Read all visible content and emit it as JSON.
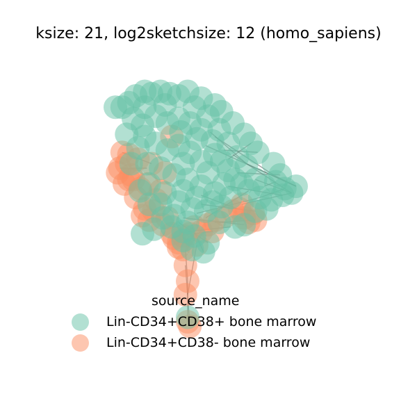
{
  "chart_data": {
    "type": "scatter",
    "title": "ksize: 21, log2sketchsize: 12 (homo_sapiens)",
    "legend": {
      "title": "source_name",
      "placement": "bottom-center",
      "entries": [
        {
          "label": "Lin-CD34+CD38+ bone marrow",
          "color": "#66c2a5"
        },
        {
          "label": "Lin-CD34+CD38- bone marrow",
          "color": "#fc8d62"
        }
      ]
    },
    "axes_visible": false,
    "grid": false,
    "edge_color": "#555555",
    "series": [
      {
        "name": "Lin-CD34+CD38- bone marrow",
        "color": "#fc8d62",
        "points": [
          [
            -1.45,
            0.55
          ],
          [
            -1.5,
            0.2
          ],
          [
            -1.35,
            0.3
          ],
          [
            -1.25,
            0.05
          ],
          [
            -1.2,
            -0.05
          ],
          [
            -1.55,
            0.1
          ],
          [
            -1.3,
            -0.05
          ],
          [
            -1.1,
            0.4
          ],
          [
            -1.05,
            -0.25
          ],
          [
            -1.15,
            -0.45
          ],
          [
            -0.95,
            -0.7
          ],
          [
            -1.0,
            -0.85
          ],
          [
            -0.85,
            -0.95
          ],
          [
            -0.7,
            -0.5
          ],
          [
            -0.6,
            -0.3
          ],
          [
            -0.55,
            -1.05
          ],
          [
            -0.35,
            -1.25
          ],
          [
            -0.3,
            -1.35
          ],
          [
            -0.2,
            -1.45
          ],
          [
            -0.1,
            -1.3
          ],
          [
            0.05,
            -1.25
          ],
          [
            0.15,
            -1.1
          ],
          [
            0.2,
            -1.5
          ],
          [
            -0.1,
            -1.6
          ],
          [
            -0.2,
            -1.55
          ],
          [
            0.3,
            -1.2
          ],
          [
            0.45,
            -1.05
          ],
          [
            0.55,
            -1.2
          ],
          [
            0.85,
            -0.85
          ],
          [
            1.0,
            -0.75
          ],
          [
            1.15,
            -0.7
          ],
          [
            1.25,
            -0.9
          ],
          [
            1.45,
            -0.8
          ],
          [
            1.5,
            -0.95
          ],
          [
            1.35,
            -1.0
          ],
          [
            -0.05,
            -1.95
          ],
          [
            0.0,
            -2.3
          ],
          [
            -0.05,
            -2.6
          ],
          [
            0.0,
            -3.2
          ],
          [
            0.05,
            -3.3
          ],
          [
            -0.35,
            0.9
          ],
          [
            -0.8,
            0.3
          ],
          [
            -0.5,
            0.1
          ],
          [
            -1.3,
            0.5
          ],
          [
            -1.4,
            -0.15
          ],
          [
            -0.9,
            -0.15
          ],
          [
            -0.75,
            -0.75
          ],
          [
            -0.45,
            -0.9
          ],
          [
            0.6,
            -0.95
          ],
          [
            1.2,
            -0.6
          ]
        ]
      },
      {
        "name": "Lin-CD34+CD38+ bone marrow",
        "color": "#66c2a5",
        "points": [
          [
            -1.45,
            1.55
          ],
          [
            -1.3,
            1.65
          ],
          [
            -1.15,
            1.8
          ],
          [
            -0.95,
            1.9
          ],
          [
            -0.8,
            1.85
          ],
          [
            -0.6,
            1.9
          ],
          [
            -0.4,
            1.85
          ],
          [
            -0.2,
            1.8
          ],
          [
            0.0,
            1.9
          ],
          [
            0.3,
            1.75
          ],
          [
            0.6,
            1.6
          ],
          [
            0.75,
            1.45
          ],
          [
            1.0,
            1.2
          ],
          [
            1.25,
            0.95
          ],
          [
            1.4,
            0.75
          ],
          [
            1.55,
            0.55
          ],
          [
            1.9,
            0.3
          ],
          [
            2.05,
            0.05
          ],
          [
            2.4,
            -0.2
          ],
          [
            2.3,
            -0.35
          ],
          [
            2.1,
            -0.4
          ],
          [
            1.85,
            -0.5
          ],
          [
            1.6,
            -0.45
          ],
          [
            1.35,
            -0.3
          ],
          [
            1.2,
            -0.15
          ],
          [
            1.05,
            -0.05
          ],
          [
            0.9,
            0.15
          ],
          [
            0.75,
            0.35
          ],
          [
            0.6,
            0.5
          ],
          [
            0.95,
            -0.45
          ],
          [
            1.25,
            -1.05
          ],
          [
            1.05,
            -1.1
          ],
          [
            0.7,
            -1.0
          ],
          [
            0.45,
            -1.45
          ],
          [
            0.35,
            -1.65
          ],
          [
            0.1,
            -1.6
          ],
          [
            -0.1,
            -1.4
          ],
          [
            -0.35,
            -1.1
          ],
          [
            -0.55,
            -0.9
          ],
          [
            -0.75,
            -1.15
          ],
          [
            -1.0,
            -1.25
          ],
          [
            -0.85,
            -0.6
          ],
          [
            -1.05,
            -0.3
          ],
          [
            -1.25,
            0.3
          ],
          [
            -1.35,
            0.95
          ],
          [
            -1.2,
            1.3
          ],
          [
            -1.6,
            1.55
          ],
          [
            -0.95,
            1.55
          ],
          [
            -0.7,
            1.35
          ],
          [
            -0.45,
            1.2
          ],
          [
            -0.2,
            1.3
          ],
          [
            0.05,
            1.2
          ],
          [
            0.3,
            1.05
          ],
          [
            -0.95,
            0.9
          ],
          [
            -0.7,
            0.75
          ],
          [
            -0.45,
            0.6
          ],
          [
            -0.2,
            0.7
          ],
          [
            0.05,
            0.55
          ],
          [
            0.3,
            0.35
          ],
          [
            -0.9,
            0.3
          ],
          [
            -0.6,
            0.2
          ],
          [
            -0.3,
            0.05
          ],
          [
            0.0,
            -0.05
          ],
          [
            0.3,
            -0.2
          ],
          [
            0.6,
            -0.35
          ],
          [
            -0.85,
            -0.15
          ],
          [
            -0.5,
            -0.35
          ],
          [
            -0.2,
            -0.55
          ],
          [
            0.1,
            -0.7
          ],
          [
            0.4,
            -0.75
          ],
          [
            -0.6,
            -0.6
          ],
          [
            -0.3,
            -0.85
          ],
          [
            0.0,
            -1.0
          ],
          [
            -0.1,
            -1.2
          ],
          [
            0.15,
            -1.3
          ],
          [
            0.9,
            0.75
          ],
          [
            1.1,
            0.45
          ],
          [
            1.3,
            0.25
          ],
          [
            1.5,
            -0.05
          ],
          [
            1.7,
            -0.2
          ],
          [
            1.95,
            -0.1
          ],
          [
            2.15,
            -0.25
          ],
          [
            1.75,
            -0.7
          ],
          [
            1.5,
            -0.75
          ],
          [
            0.75,
            -0.65
          ],
          [
            -1.1,
            0.65
          ],
          [
            -1.0,
            1.15
          ],
          [
            -0.5,
            1.6
          ],
          [
            0.15,
            1.55
          ],
          [
            0.45,
            1.35
          ],
          [
            0.7,
            1.05
          ],
          [
            0.55,
            0.8
          ],
          [
            0.2,
            0.85
          ],
          [
            -0.15,
            1.0
          ],
          [
            0.45,
            0.1
          ],
          [
            -0.1,
            -0.3
          ],
          [
            0.2,
            -0.45
          ],
          [
            0.8,
            -0.15
          ],
          [
            0.55,
            -0.55
          ],
          [
            -0.1,
            0.3
          ],
          [
            0.0,
            -3.1
          ]
        ]
      }
    ],
    "edges": [
      [
        [
          0.5,
          1.0
        ],
        [
          1.3,
          0.3
        ]
      ],
      [
        [
          0.6,
          0.9
        ],
        [
          1.9,
          0.05
        ]
      ],
      [
        [
          0.4,
          0.7
        ],
        [
          2.4,
          -0.2
        ]
      ],
      [
        [
          1.0,
          0.5
        ],
        [
          2.3,
          -0.35
        ]
      ],
      [
        [
          1.3,
          0.3
        ],
        [
          2.4,
          -0.2
        ]
      ],
      [
        [
          1.9,
          0.05
        ],
        [
          2.4,
          -0.2
        ]
      ],
      [
        [
          1.5,
          -0.05
        ],
        [
          2.3,
          -0.35
        ]
      ],
      [
        [
          0.9,
          -0.2
        ],
        [
          2.1,
          -0.4
        ]
      ],
      [
        [
          1.1,
          0.1
        ],
        [
          2.05,
          0.05
        ]
      ],
      [
        [
          0.3,
          -0.6
        ],
        [
          1.5,
          -0.75
        ]
      ],
      [
        [
          0.2,
          -0.8
        ],
        [
          1.6,
          -0.45
        ]
      ],
      [
        [
          0.4,
          -0.9
        ],
        [
          1.35,
          -0.3
        ]
      ],
      [
        [
          0.6,
          -1.0
        ],
        [
          1.5,
          -0.95
        ]
      ],
      [
        [
          -0.1,
          -0.9
        ],
        [
          1.25,
          -1.05
        ]
      ],
      [
        [
          0.0,
          -1.2
        ],
        [
          0.95,
          -1.1
        ]
      ],
      [
        [
          -0.3,
          -1.3
        ],
        [
          0.55,
          -1.2
        ]
      ],
      [
        [
          -0.05,
          -1.6
        ],
        [
          0.0,
          -2.3
        ]
      ],
      [
        [
          0.0,
          -2.3
        ],
        [
          0.0,
          -3.2
        ]
      ],
      [
        [
          -0.05,
          -1.95
        ],
        [
          0.05,
          -3.3
        ]
      ],
      [
        [
          0.2,
          -1.5
        ],
        [
          0.0,
          -2.6
        ]
      ],
      [
        [
          -1.45,
          0.55
        ],
        [
          -0.8,
          0.3
        ]
      ],
      [
        [
          -1.5,
          0.2
        ],
        [
          -0.9,
          0.2
        ]
      ],
      [
        [
          1.6,
          -0.45
        ],
        [
          2.15,
          -0.25
        ]
      ],
      [
        [
          1.7,
          -0.2
        ],
        [
          1.95,
          -0.1
        ]
      ],
      [
        [
          0.8,
          0.6
        ],
        [
          1.55,
          0.55
        ]
      ],
      [
        [
          0.9,
          0.4
        ],
        [
          1.4,
          0.75
        ]
      ],
      [
        [
          0.3,
          -0.4
        ],
        [
          1.1,
          -0.7
        ]
      ],
      [
        [
          -0.2,
          -1.0
        ],
        [
          0.45,
          -1.45
        ]
      ],
      [
        [
          0.1,
          -1.1
        ],
        [
          0.35,
          -1.65
        ]
      ],
      [
        [
          1.2,
          -0.6
        ],
        [
          2.3,
          -0.35
        ]
      ]
    ]
  }
}
